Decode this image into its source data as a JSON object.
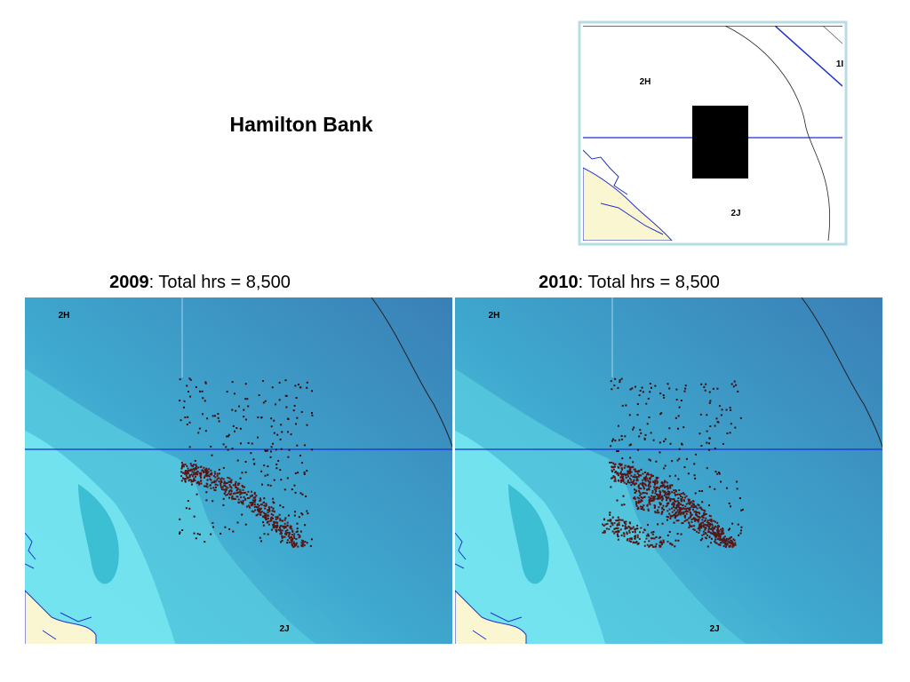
{
  "header": {
    "title": "Hamilton Bank"
  },
  "inset": {
    "labels": [
      "2H",
      "1I",
      "2J"
    ]
  },
  "panels": [
    {
      "year": "2009",
      "caption": ": Total hrs = 8,500",
      "labels": [
        "2H",
        "2J"
      ]
    },
    {
      "year": "2010",
      "caption": ": Total hrs = 8,500",
      "labels": [
        "2H",
        "2J"
      ]
    }
  ]
}
